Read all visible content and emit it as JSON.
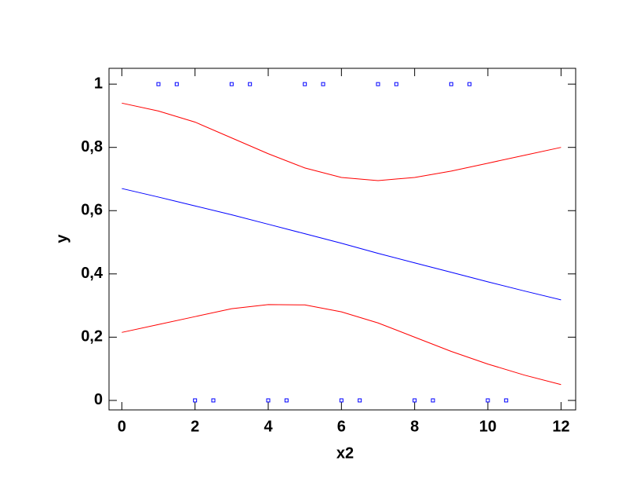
{
  "chart_data": {
    "type": "line",
    "x_label": "x2",
    "y_label": "y",
    "xlim": [
      -0.35,
      12.4
    ],
    "ylim": [
      -0.03,
      1.05
    ],
    "xticks": [
      0,
      2,
      4,
      6,
      8,
      10,
      12
    ],
    "yticks": [
      0,
      {
        "value": 0.2,
        "label": "0,2"
      },
      {
        "value": 0.4,
        "label": "0,4"
      },
      {
        "value": 0.6,
        "label": "0,6"
      },
      {
        "value": 0.8,
        "label": "0,8"
      },
      1
    ],
    "series": [
      {
        "style": "marker",
        "color": "#0000ff",
        "x": [
          1,
          1.5,
          3,
          3.5,
          5,
          5.5,
          7,
          7.5,
          9,
          9.5,
          2,
          2.5,
          4,
          4.5,
          6,
          6.5,
          8,
          8.5,
          10,
          10.5
        ],
        "values": [
          1,
          1,
          1,
          1,
          1,
          1,
          1,
          1,
          1,
          1,
          0,
          0,
          0,
          0,
          0,
          0,
          0,
          0,
          0,
          0
        ]
      },
      {
        "style": "line",
        "color": "#0000ff",
        "x": [
          0,
          1,
          2,
          3,
          4,
          5,
          6,
          7,
          8,
          9,
          10,
          11,
          12
        ],
        "values": [
          0.67,
          0.643,
          0.615,
          0.587,
          0.557,
          0.527,
          0.497,
          0.465,
          0.435,
          0.405,
          0.375,
          0.346,
          0.318
        ]
      },
      {
        "style": "line",
        "color": "#ff0000",
        "x": [
          0,
          1,
          2,
          3,
          4,
          5,
          6,
          7,
          8,
          9,
          10,
          11,
          12
        ],
        "values": [
          0.94,
          0.915,
          0.88,
          0.83,
          0.78,
          0.735,
          0.705,
          0.695,
          0.705,
          0.725,
          0.75,
          0.775,
          0.8
        ]
      },
      {
        "style": "line",
        "color": "#ff0000",
        "x": [
          0,
          1,
          2,
          3,
          4,
          5,
          6,
          7,
          8,
          9,
          10,
          11,
          12
        ],
        "values": [
          0.215,
          0.24,
          0.265,
          0.29,
          0.303,
          0.302,
          0.28,
          0.245,
          0.2,
          0.155,
          0.115,
          0.08,
          0.05
        ]
      }
    ]
  }
}
